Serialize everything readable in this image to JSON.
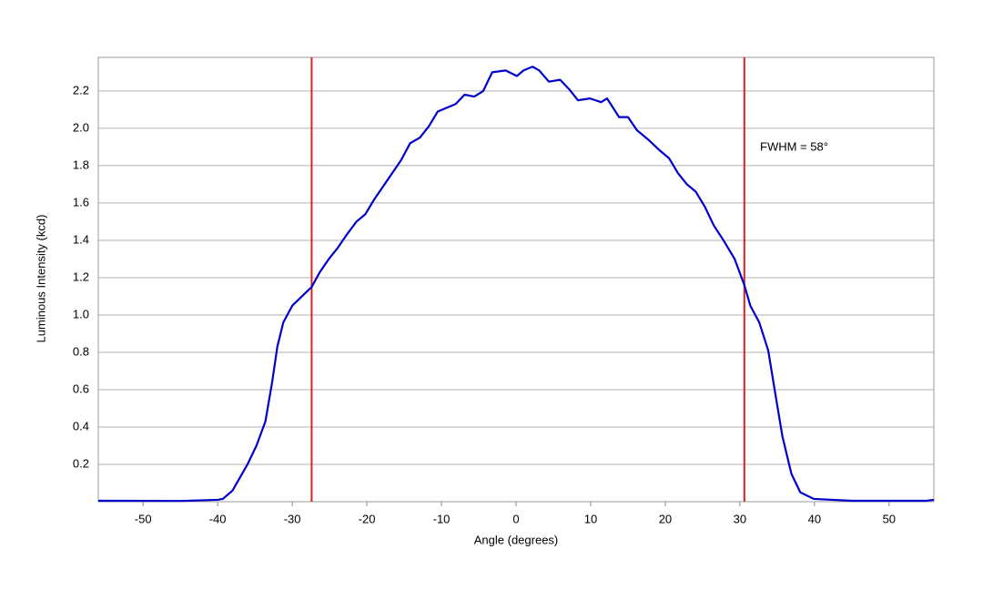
{
  "chart_data": {
    "type": "line",
    "x_label": "Angle (degrees)",
    "y_label": "Luminous Intensity (kcd)",
    "annotation": "FWHM = 58°",
    "xlim": [
      -56,
      56
    ],
    "ylim": [
      0,
      2.38
    ],
    "xticks": [
      -50,
      -40,
      -30,
      -20,
      -10,
      0,
      10,
      20,
      30,
      40,
      50
    ],
    "yticks": [
      0.2,
      0.4,
      0.6,
      0.8,
      {
        "value": 1,
        "label": "1.0"
      },
      1.2,
      1.4,
      1.6,
      1.8,
      {
        "value": 2,
        "label": "2.0"
      },
      2.2
    ],
    "grid": true,
    "vlines": [
      -27.4,
      30.6
    ],
    "vline_color": "#e02020",
    "x": [
      -56,
      -45,
      -40,
      -39.3,
      -38,
      -37,
      -36,
      -34.8,
      -33.6,
      -32.7,
      -32,
      -31.2,
      -30,
      -28.7,
      -27.4,
      -26.3,
      -25.1,
      -23.9,
      -22.7,
      -21.4,
      -20.2,
      -19,
      -17.8,
      -16.6,
      -15.4,
      -14.2,
      -12.9,
      -11.7,
      -10.5,
      -9.3,
      -8.1,
      -6.9,
      -5.6,
      -4.4,
      -3.2,
      -1.4,
      0.1,
      1.0,
      2.2,
      3.1,
      4.4,
      5.9,
      7.1,
      8.3,
      9.9,
      11.4,
      12.2,
      13.8,
      15,
      16.2,
      17.7,
      19.3,
      20.5,
      21.7,
      22.9,
      24.1,
      25.3,
      26.5,
      27.8,
      29.3,
      30.6,
      31.4,
      32.6,
      33.8,
      34.7,
      35.7,
      36.9,
      38.1,
      39.9,
      45,
      55,
      56
    ],
    "series": [
      {
        "name": "Luminous Intensity",
        "color": "#0000cc",
        "values": [
          0.005,
          0.004,
          0.01,
          0.015,
          0.06,
          0.13,
          0.2,
          0.3,
          0.43,
          0.64,
          0.83,
          0.96,
          1.05,
          1.1,
          1.15,
          1.23,
          1.3,
          1.36,
          1.43,
          1.5,
          1.54,
          1.62,
          1.69,
          1.76,
          1.83,
          1.92,
          1.95,
          2.01,
          2.09,
          2.11,
          2.13,
          2.18,
          2.17,
          2.2,
          2.3,
          2.31,
          2.28,
          2.31,
          2.33,
          2.31,
          2.25,
          2.26,
          2.21,
          2.15,
          2.16,
          2.14,
          2.16,
          2.06,
          2.06,
          1.99,
          1.94,
          1.88,
          1.84,
          1.76,
          1.7,
          1.66,
          1.58,
          1.48,
          1.4,
          1.3,
          1.16,
          1.05,
          0.96,
          0.81,
          0.59,
          0.35,
          0.15,
          0.05,
          0.015,
          0.005,
          0.005,
          0.01
        ]
      }
    ]
  }
}
